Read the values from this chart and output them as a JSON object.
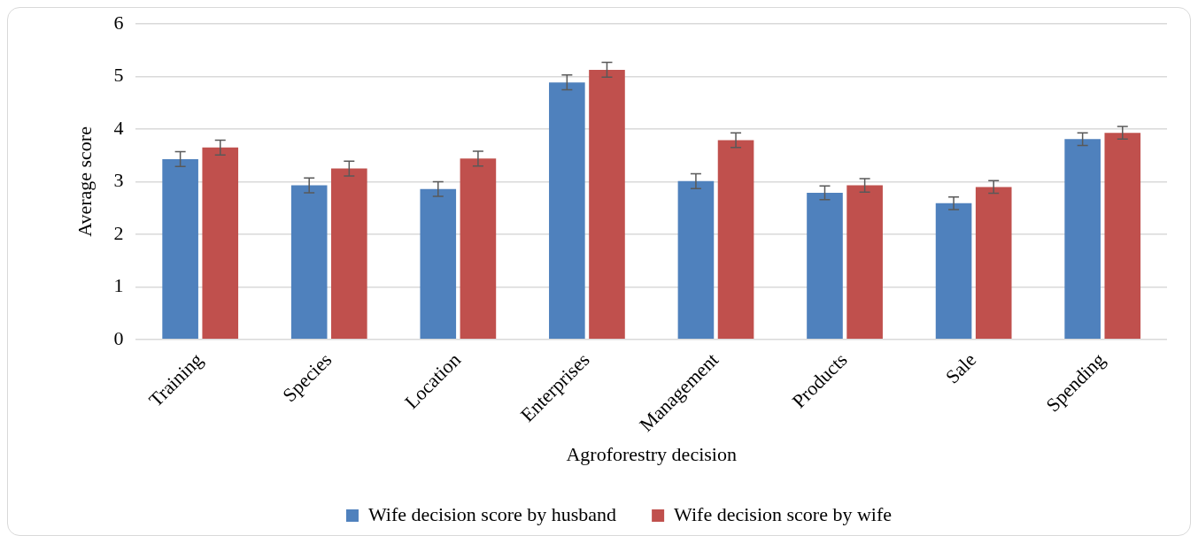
{
  "chart_data": {
    "type": "bar",
    "xlabel": "Agroforestry decision",
    "ylabel": "Average score",
    "categories": [
      "Training",
      "Species",
      "Location",
      "Enterprises",
      "Management",
      "Products",
      "Sale",
      "Spending"
    ],
    "series": [
      {
        "name": "Wife decision score by husband",
        "color": "#4f81bd",
        "values": [
          3.43,
          2.93,
          2.86,
          4.89,
          3.01,
          2.79,
          2.59,
          3.81
        ],
        "errors": [
          0.14,
          0.14,
          0.14,
          0.14,
          0.14,
          0.13,
          0.12,
          0.12
        ]
      },
      {
        "name": "Wife decision score by wife",
        "color": "#c0504d",
        "values": [
          3.65,
          3.25,
          3.44,
          5.13,
          3.79,
          2.93,
          2.9,
          3.93
        ],
        "errors": [
          0.14,
          0.14,
          0.14,
          0.14,
          0.14,
          0.13,
          0.12,
          0.12
        ]
      }
    ],
    "ylim": [
      0,
      6
    ],
    "yticks": [
      0,
      1,
      2,
      3,
      4,
      5,
      6
    ],
    "grid": "y",
    "legend": "bottom"
  }
}
